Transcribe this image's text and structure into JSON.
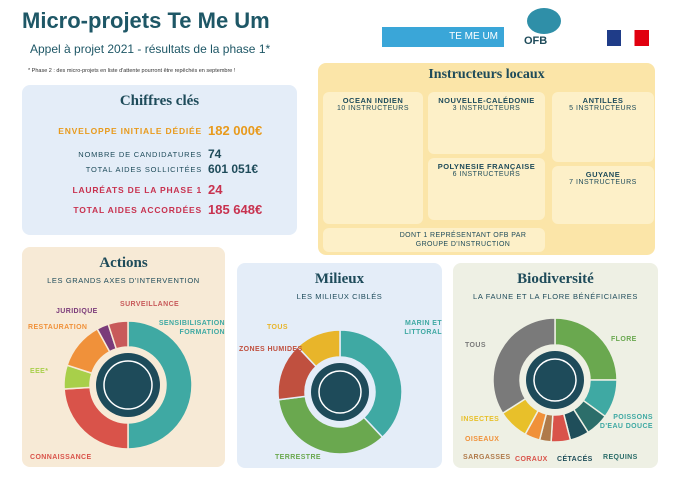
{
  "header": {
    "title": "Micro-projets Te Me Um",
    "subtitle": "Appel à projet 2021 - résultats de la phase 1*",
    "note": "* Phase 2 : des micro-projets en liste d'attente pourront être repêchés en septembre !"
  },
  "logos": {
    "temeum": "TE ME UM",
    "ofb": "OFB"
  },
  "key_figures": {
    "title": "Chiffres clés",
    "rows": [
      {
        "label": "ENVELOPPE INITIALE DÉDIÉE",
        "value": "182 000€"
      },
      {
        "label": "NOMBRE DE CANDIDATURES",
        "value": "74"
      },
      {
        "label": "TOTAL AIDES SOLLICITÉES",
        "value": "601 051€"
      },
      {
        "label": "LAURÉATS DE LA PHASE 1",
        "value": "24"
      },
      {
        "label": "TOTAL AIDES ACCORDÉES",
        "value": "185 648€"
      }
    ]
  },
  "instructors": {
    "title": "Instructeurs locaux",
    "regions": [
      {
        "name": "OCEAN INDIEN",
        "count": "10 INSTRUCTEURS"
      },
      {
        "name": "NOUVELLE-CALÉDONIE",
        "count": "3 INSTRUCTEURS"
      },
      {
        "name": "POLYNESIE FRANÇAISE",
        "count": "6 INSTRUCTEURS"
      },
      {
        "name": "ANTILLES",
        "count": "5 INSTRUCTEURS"
      },
      {
        "name": "GUYANE",
        "count": "7 INSTRUCTEURS"
      }
    ],
    "ofb_note": "DONT 1 REPRÉSENTANT OFB PAR GROUPE D'INSTRUCTION"
  },
  "panels": [
    {
      "title": "Actions",
      "subtitle": "LES GRANDS AXES D'INTERVENTION",
      "segments": [
        {
          "label": "SENSIBILISATION FORMATION",
          "value": 50,
          "color": "#3fa9a3"
        },
        {
          "label": "CONNAISSANCE",
          "value": 24,
          "color": "#d9534a"
        },
        {
          "label": "EEE*",
          "value": 6,
          "color": "#a8cf4a"
        },
        {
          "label": "RESTAURATION",
          "value": 12,
          "color": "#f0913a"
        },
        {
          "label": "JURIDIQUE",
          "value": 3,
          "color": "#7b3b7a"
        },
        {
          "label": "SURVEILLANCE",
          "value": 5,
          "color": "#c85a5a"
        }
      ]
    },
    {
      "title": "Milieux",
      "subtitle": "LES MILIEUX CIBLÉS",
      "segments": [
        {
          "label": "MARIN ET LITTORAL",
          "value": 38,
          "color": "#3fa9a3"
        },
        {
          "label": "TERRESTRE",
          "value": 35,
          "color": "#6aa84f"
        },
        {
          "label": "ZONES HUMIDES",
          "value": 15,
          "color": "#c0503f"
        },
        {
          "label": "TOUS",
          "value": 12,
          "color": "#e8b52a"
        }
      ]
    },
    {
      "title": "Biodiversité",
      "subtitle": "LA FAUNE ET LA FLORE BÉNÉFICIAIRES",
      "segments": [
        {
          "label": "FLORE",
          "value": 25,
          "color": "#6aa84f"
        },
        {
          "label": "POISSONS D'EAU DOUCE",
          "value": 10,
          "color": "#3fa9a3"
        },
        {
          "label": "REQUINS",
          "value": 6,
          "color": "#2c6e6a"
        },
        {
          "label": "CÉTACÉS",
          "value": 5,
          "color": "#1f4e5a"
        },
        {
          "label": "CORAUX",
          "value": 5,
          "color": "#d9534a"
        },
        {
          "label": "SARGASSES",
          "value": 3,
          "color": "#b07a4a"
        },
        {
          "label": "OISEAUX",
          "value": 4,
          "color": "#f0913a"
        },
        {
          "label": "INSECTES",
          "value": 8,
          "color": "#e8c02a"
        },
        {
          "label": "TOUS",
          "value": 34,
          "color": "#7a7a7a"
        }
      ]
    }
  ]
}
